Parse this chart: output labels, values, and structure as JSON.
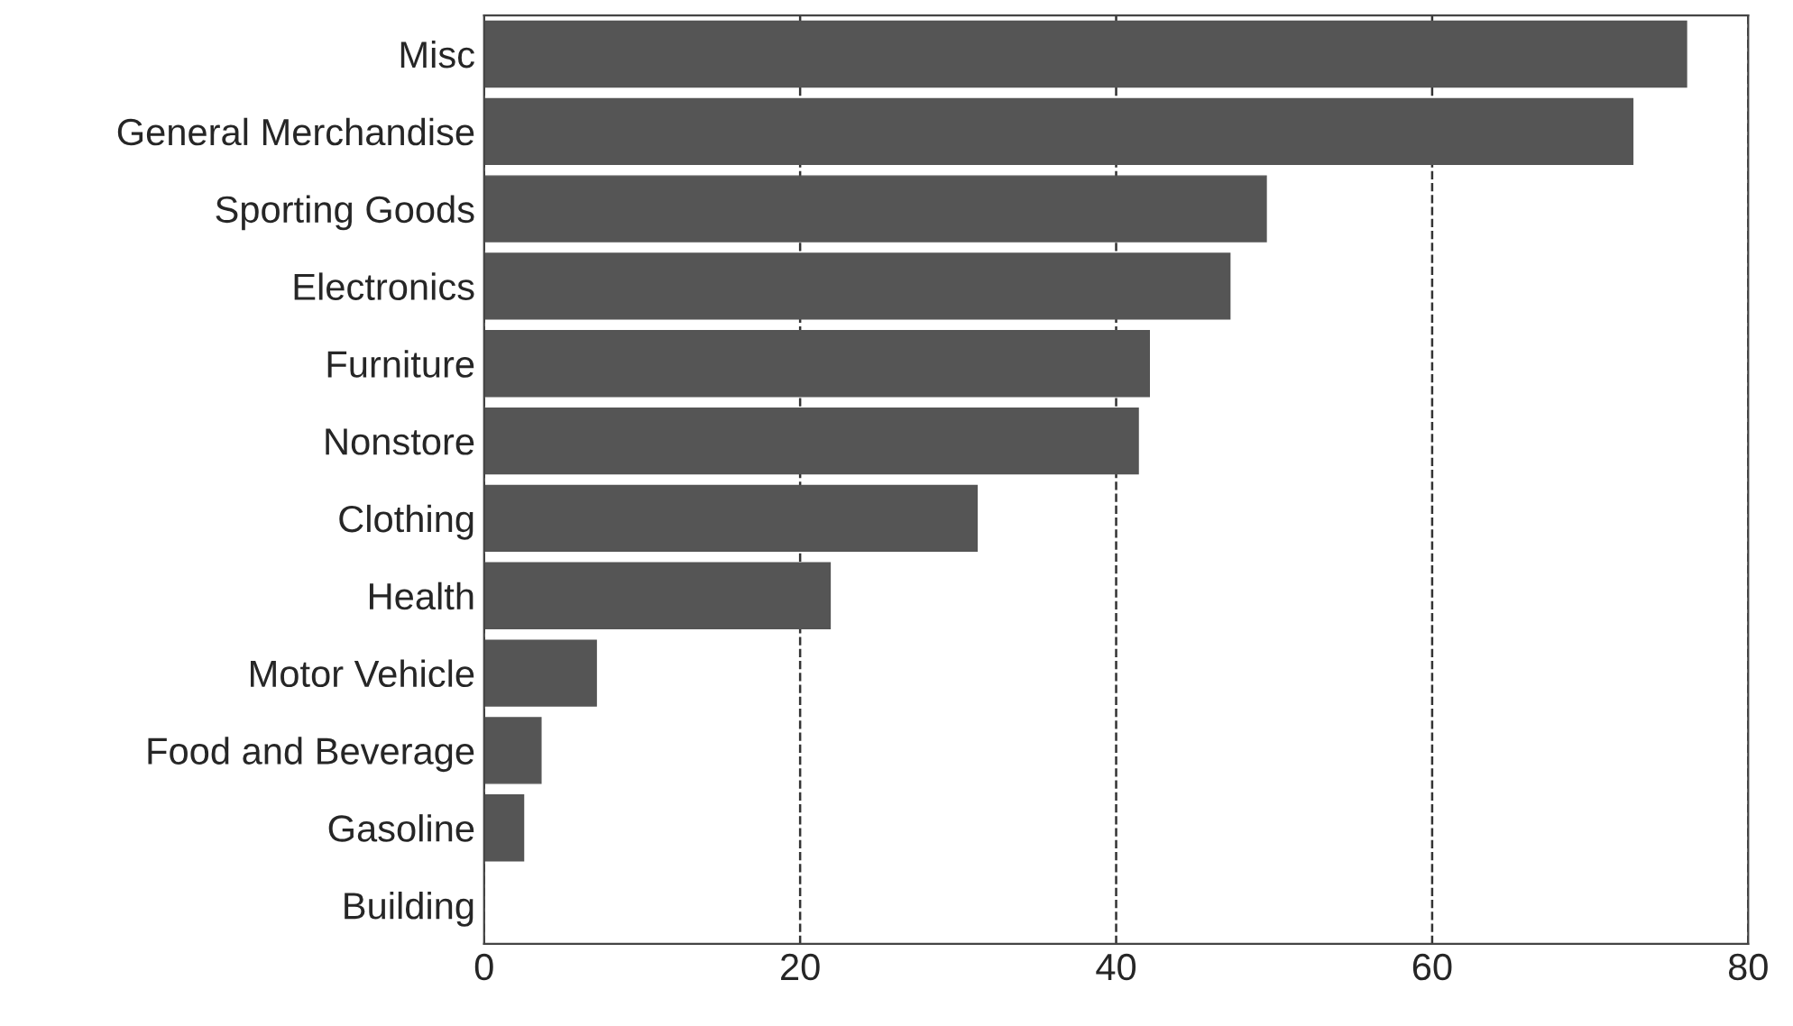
{
  "chart_data": {
    "type": "bar",
    "orientation": "horizontal",
    "categories": [
      "Misc",
      "General Merchandise",
      "Sporting Goods",
      "Electronics",
      "Furniture",
      "Nonstore",
      "Clothing",
      "Health",
      "Motor Vehicle",
      "Food and Beverage",
      "Gasoline",
      "Building"
    ],
    "values": [
      76.1,
      72.7,
      49.5,
      47.2,
      42.1,
      41.4,
      31.2,
      21.9,
      7.1,
      3.6,
      2.5,
      0
    ],
    "color": "#555555",
    "xlim": [
      0,
      80
    ],
    "xticks": [
      0,
      20,
      40,
      60,
      80
    ],
    "grid": "x",
    "line_style": "dashed"
  }
}
